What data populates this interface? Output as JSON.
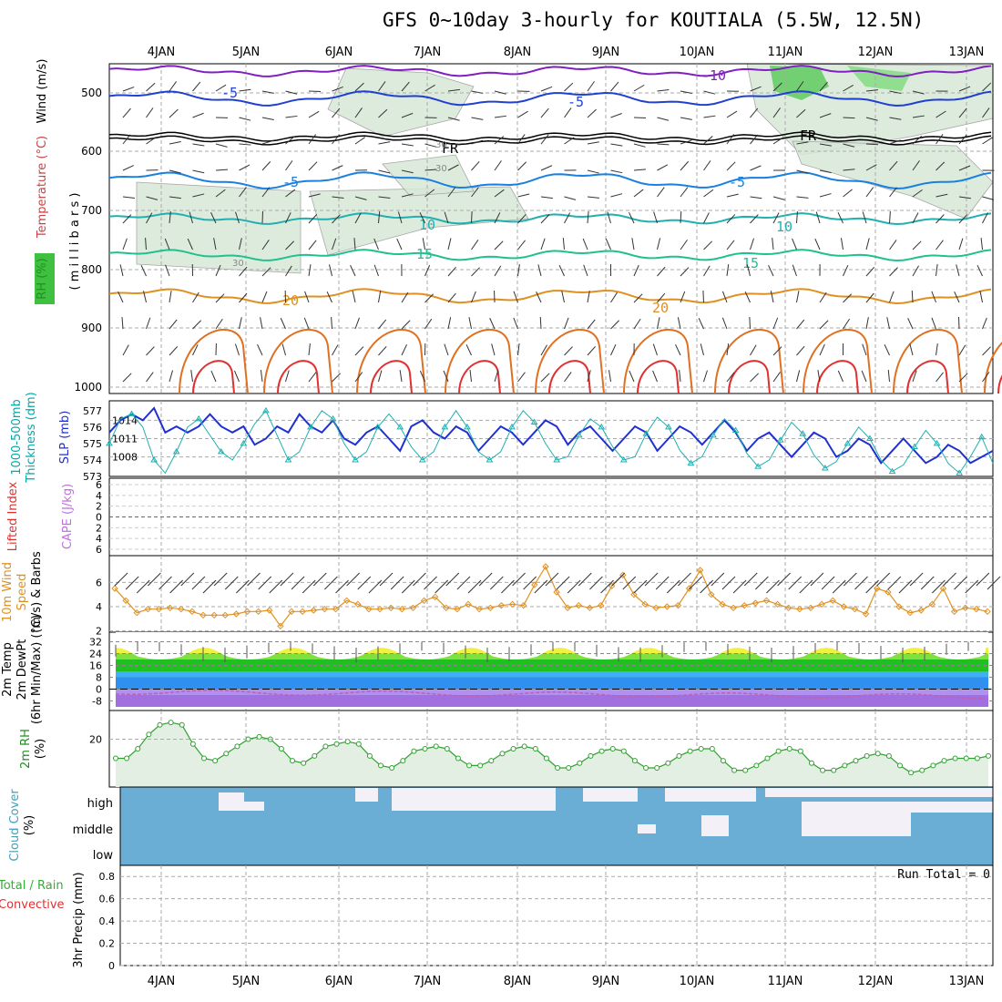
{
  "title": "GFS 0~10day 3-hourly for KOUTIALA (5.5W, 12.5N)",
  "dates": [
    "4JAN",
    "5JAN",
    "6JAN",
    "7JAN",
    "8JAN",
    "9JAN",
    "10JAN",
    "11JAN",
    "12JAN",
    "13JAN"
  ],
  "panel_labels": {
    "upper": [
      {
        "text": "Wind (m/s)",
        "color": "#000000"
      },
      {
        "text": "Temperature (°C)",
        "color": "#d04040"
      },
      {
        "text": "RH (%)",
        "color": "#209020"
      },
      {
        "text": "( m i l l i b a r s )",
        "color": "#000000"
      }
    ],
    "thickness": [
      {
        "text": "1000-500mb",
        "color": "#00aaaa"
      },
      {
        "text": "Thickness (dm)",
        "color": "#00aaaa"
      },
      {
        "text": "SLP (mb)",
        "color": "#2030d0"
      }
    ],
    "cape": [
      {
        "text": "Lifted Index",
        "color": "#e03030"
      },
      {
        "text": "CAPE (J/kg)",
        "color": "#c070e0"
      }
    ],
    "wind10": [
      {
        "text": "10m Wind",
        "color": "#e09020"
      },
      {
        "text": "Speed",
        "color": "#e09020"
      },
      {
        "text": "(m/s) & Barbs",
        "color": "#000000"
      }
    ],
    "temp2m": [
      {
        "text": "2m Temp",
        "color": "#000000"
      },
      {
        "text": "2m DewPt",
        "color": "#000000"
      },
      {
        "text": "(6hr Min/Max) (°C)",
        "color": "#000000"
      }
    ],
    "rh2m": [
      {
        "text": "2m RH",
        "color": "#209020"
      },
      {
        "text": "(%)",
        "color": "#000000"
      }
    ],
    "cloud": [
      {
        "text": "Cloud Cover",
        "color": "#40a0c0"
      },
      {
        "text": "(%)",
        "color": "#000000"
      }
    ],
    "precip": [
      {
        "text": "Total / Rain",
        "color": "#30b030"
      },
      {
        "text": "Convective",
        "color": "#e03030"
      },
      {
        "text": "3hr Precip (mm)",
        "color": "#000000"
      }
    ]
  },
  "run_total": "Run Total = 0",
  "cloud_levels": [
    "high",
    "middle",
    "low"
  ],
  "colors": {
    "slp": "#2030d0",
    "thickness": "#20b0b0",
    "wind10": "#e09020",
    "rh2m": "#30a030",
    "cloud": "#6aaed6",
    "temp": "#c04020"
  },
  "contour_labels": {
    "temperature": [
      "-10",
      "-5",
      "-5",
      "FR",
      "FR",
      "-5",
      "-5",
      "10",
      "10",
      "15",
      "15",
      "20",
      "20"
    ],
    "rh": [
      "30",
      "30",
      "30"
    ]
  },
  "chart_data": [
    {
      "type": "line",
      "name": "pressure-level cross section",
      "yticks": [
        500,
        600,
        700,
        800,
        900,
        1000
      ],
      "ylim": [
        1000,
        450
      ]
    },
    {
      "type": "line",
      "name": "thickness-slp",
      "series": [
        {
          "name": "SLP (mb)",
          "values": [
            1012,
            1014,
            1015,
            1014,
            1016,
            1012,
            1013,
            1012,
            1013,
            1015,
            1013,
            1012,
            1013,
            1010,
            1011,
            1013,
            1012,
            1015,
            1013,
            1012,
            1014,
            1011,
            1010,
            1012,
            1013,
            1011,
            1009,
            1013,
            1014,
            1012,
            1011,
            1013,
            1012,
            1009,
            1011,
            1013,
            1012,
            1010,
            1012,
            1014,
            1013,
            1010,
            1012,
            1013,
            1011,
            1009,
            1011,
            1013,
            1012,
            1009,
            1011,
            1013,
            1012,
            1010,
            1012,
            1014,
            1012,
            1009,
            1011,
            1012,
            1010,
            1008,
            1010,
            1012,
            1011,
            1008,
            1009,
            1011,
            1010,
            1007,
            1009,
            1011,
            1009,
            1007,
            1008,
            1010,
            1009,
            1007,
            1008,
            1009
          ]
        },
        {
          "name": "Thickness (dm)",
          "values": [
            575,
            576.5,
            576.8,
            576,
            574,
            573.2,
            574.5,
            576,
            576.5,
            575.5,
            574.5,
            574,
            575,
            576.2,
            577,
            575.5,
            574,
            574.5,
            576,
            577,
            576.5,
            575,
            574,
            574.5,
            576,
            576.8,
            576,
            574.8,
            574,
            574.5,
            576,
            577,
            576,
            574.5,
            574,
            574.5,
            576,
            577,
            576.3,
            575,
            574,
            574.2,
            575.5,
            576.5,
            576,
            574.8,
            574,
            574.2,
            575.6,
            576.6,
            576,
            574.6,
            573.8,
            574.2,
            575.5,
            576.5,
            575.8,
            574.4,
            573.6,
            574,
            575.2,
            576.3,
            575.6,
            574.3,
            573.5,
            573.9,
            575,
            576,
            575.3,
            574,
            573.3,
            573.7,
            574.8,
            575.8,
            575,
            573.8,
            573.2,
            574.2,
            575.4,
            573.8
          ]
        }
      ],
      "yticks_left": [
        573,
        574,
        575,
        576,
        577
      ],
      "yticks_right": [
        1008,
        1011,
        1014
      ]
    },
    {
      "type": "line",
      "name": "lifted-index-cape",
      "yticks": [
        "6",
        "4",
        "2",
        "0",
        "2",
        "4",
        "6"
      ]
    },
    {
      "type": "line",
      "name": "10m wind speed",
      "series": [
        {
          "name": "10m Wind Speed (m/s)",
          "values": [
            5.5,
            4.5,
            3.5,
            3.8,
            3.8,
            3.9,
            3.8,
            3.6,
            3.3,
            3.3,
            3.3,
            3.4,
            3.6,
            3.6,
            3.7,
            2.4,
            3.6,
            3.6,
            3.7,
            3.8,
            3.8,
            4.5,
            4.2,
            3.8,
            3.8,
            3.9,
            3.8,
            3.9,
            4.5,
            4.8,
            3.9,
            3.8,
            4.2,
            3.8,
            3.9,
            4.1,
            4.2,
            4.1,
            5.8,
            7.3,
            5.2,
            3.9,
            4.1,
            3.9,
            4.1,
            5.7,
            6.6,
            5.0,
            4.2,
            3.9,
            4.0,
            4.1,
            5.5,
            7.0,
            5.0,
            4.2,
            3.9,
            4.1,
            4.3,
            4.5,
            4.2,
            3.9,
            3.8,
            3.9,
            4.2,
            4.5,
            4.0,
            3.8,
            3.4,
            5.5,
            5.2,
            4.0,
            3.5,
            3.7,
            4.2,
            5.5,
            3.6,
            3.9,
            3.8,
            3.6
          ]
        }
      ],
      "yticks": [
        2,
        4,
        6
      ]
    },
    {
      "type": "area",
      "name": "2m temp / dewpt",
      "yticks": [
        32,
        24,
        16,
        8,
        0,
        -8
      ]
    },
    {
      "type": "area",
      "name": "2m RH",
      "series": [
        {
          "name": "2m RH (%)",
          "values": [
            12,
            12,
            16,
            22,
            26,
            27,
            26,
            18,
            12,
            11,
            14,
            17,
            20,
            21,
            20,
            16,
            11,
            10,
            13,
            17,
            18,
            19,
            18,
            13,
            9,
            8,
            11,
            15,
            16,
            17,
            16,
            12,
            9,
            9,
            11,
            14,
            16,
            17,
            16,
            12,
            8,
            8,
            10,
            13,
            15,
            16,
            15,
            11,
            8,
            8,
            10,
            13,
            15,
            16,
            16,
            11,
            7,
            7,
            9,
            12,
            15,
            16,
            15,
            10,
            7,
            7,
            9,
            11,
            13,
            14,
            13,
            9,
            6,
            7,
            9,
            11,
            12,
            12,
            12,
            13
          ]
        }
      ],
      "yticks": [
        20
      ]
    },
    {
      "type": "area",
      "name": "cloud cover",
      "categories": [
        "high",
        "middle",
        "low"
      ]
    },
    {
      "type": "bar",
      "name": "3hr precip",
      "yticks": [
        0,
        0.2,
        0.4,
        0.6,
        0.8
      ],
      "values": []
    }
  ]
}
